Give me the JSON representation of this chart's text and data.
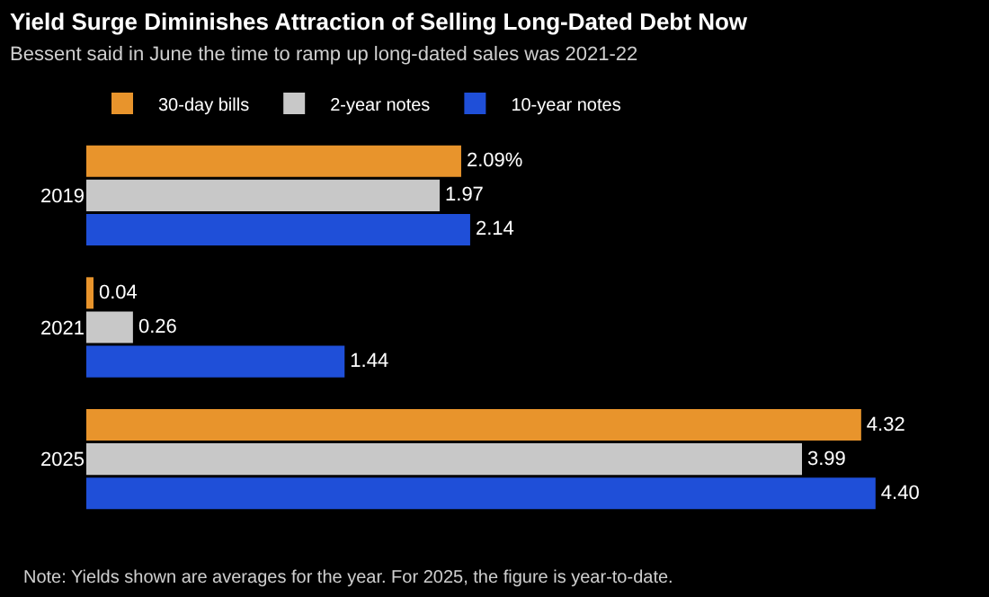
{
  "chart_data": {
    "type": "bar",
    "orientation": "horizontal",
    "title": "Yield Surge Diminishes Attraction of Selling Long-Dated Debt Now",
    "subtitle": "Bessent said in June the time to ramp up long-dated sales was 2021-22",
    "categories": [
      "2019",
      "2021",
      "2025"
    ],
    "series": [
      {
        "name": "30-day bills",
        "color": "#e8942c",
        "values": [
          2.09,
          0.04,
          4.32
        ],
        "value_labels": [
          "2.09%",
          "0.04",
          "4.32"
        ]
      },
      {
        "name": "2-year notes",
        "color": "#c8c8c8",
        "values": [
          1.97,
          0.26,
          3.99
        ],
        "value_labels": [
          "1.97",
          "0.26",
          "3.99"
        ]
      },
      {
        "name": "10-year notes",
        "color": "#1f4fd8",
        "values": [
          2.14,
          1.44,
          4.4
        ],
        "value_labels": [
          "2.14",
          "1.44",
          "4.40"
        ]
      }
    ],
    "legend": "top left",
    "annotations": [
      "Note: Yields shown are averages for the year. For 2025, the figure is year-to-date."
    ]
  }
}
